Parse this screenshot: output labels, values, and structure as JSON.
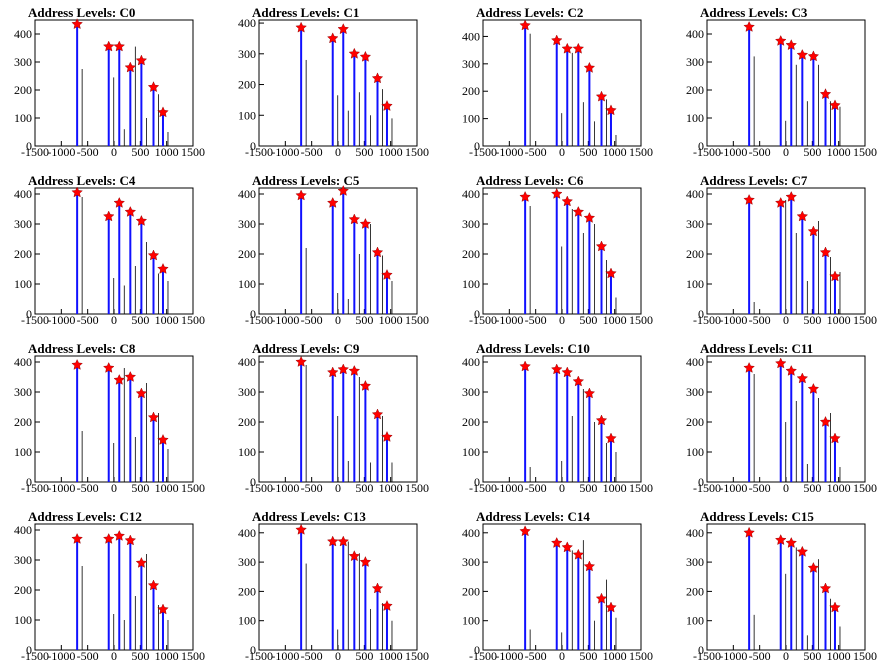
{
  "chart_data": [
    {
      "type": "bar",
      "title": "Address Levels: C0",
      "xlim": [
        -1500,
        1500
      ],
      "ylim": [
        0,
        450
      ],
      "xticks": [
        -1500,
        -1000,
        -500,
        0,
        500,
        1000,
        1500
      ],
      "yticks": [
        0,
        100,
        200,
        300,
        400
      ],
      "peaks": [
        [
          -700,
          435
        ],
        [
          -100,
          355
        ],
        [
          100,
          355
        ],
        [
          310,
          280
        ],
        [
          520,
          305
        ],
        [
          750,
          210
        ],
        [
          930,
          120
        ]
      ],
      "spikes": [
        [
          -700,
          275
        ],
        [
          -100,
          245
        ],
        [
          100,
          60
        ],
        [
          310,
          355
        ],
        [
          520,
          100
        ],
        [
          750,
          185
        ],
        [
          930,
          50
        ]
      ]
    },
    {
      "type": "bar",
      "title": "Address Levels: C1",
      "xlim": [
        -1500,
        1500
      ],
      "ylim": [
        0,
        410
      ],
      "xticks": [
        -1500,
        -1000,
        -500,
        0,
        500,
        1000,
        1500
      ],
      "yticks": [
        0,
        100,
        200,
        300,
        400
      ],
      "peaks": [
        [
          -700,
          385
        ],
        [
          -100,
          350
        ],
        [
          100,
          380
        ],
        [
          310,
          300
        ],
        [
          520,
          290
        ],
        [
          750,
          220
        ],
        [
          930,
          130
        ]
      ],
      "spikes": [
        [
          -700,
          280
        ],
        [
          -100,
          165
        ],
        [
          100,
          115
        ],
        [
          310,
          175
        ],
        [
          520,
          100
        ],
        [
          750,
          185
        ],
        [
          930,
          90
        ]
      ]
    },
    {
      "type": "bar",
      "title": "Address Levels: C2",
      "xlim": [
        -1500,
        1500
      ],
      "ylim": [
        0,
        460
      ],
      "xticks": [
        -1500,
        -1000,
        -500,
        0,
        500,
        1000,
        1500
      ],
      "yticks": [
        0,
        100,
        200,
        300,
        400
      ],
      "peaks": [
        [
          -700,
          440
        ],
        [
          -100,
          385
        ],
        [
          100,
          355
        ],
        [
          310,
          355
        ],
        [
          520,
          285
        ],
        [
          750,
          180
        ],
        [
          930,
          130
        ]
      ],
      "spikes": [
        [
          -700,
          410
        ],
        [
          -100,
          120
        ],
        [
          100,
          340
        ],
        [
          310,
          160
        ],
        [
          520,
          90
        ],
        [
          750,
          170
        ],
        [
          930,
          40
        ]
      ]
    },
    {
      "type": "bar",
      "title": "Address Levels: C3",
      "xlim": [
        -1500,
        1500
      ],
      "ylim": [
        0,
        450
      ],
      "xticks": [
        -1500,
        -1000,
        -500,
        0,
        500,
        1000,
        1500
      ],
      "yticks": [
        0,
        100,
        200,
        300,
        400
      ],
      "peaks": [
        [
          -700,
          425
        ],
        [
          -100,
          375
        ],
        [
          100,
          360
        ],
        [
          310,
          325
        ],
        [
          520,
          320
        ],
        [
          750,
          185
        ],
        [
          930,
          145
        ]
      ],
      "spikes": [
        [
          -700,
          320
        ],
        [
          -100,
          90
        ],
        [
          100,
          290
        ],
        [
          310,
          160
        ],
        [
          520,
          290
        ],
        [
          750,
          160
        ],
        [
          930,
          140
        ]
      ]
    },
    {
      "type": "bar",
      "title": "Address Levels: C4",
      "xlim": [
        -1500,
        1500
      ],
      "ylim": [
        0,
        420
      ],
      "xticks": [
        -1500,
        -1000,
        -500,
        0,
        500,
        1000,
        1500
      ],
      "yticks": [
        0,
        100,
        200,
        300,
        400
      ],
      "peaks": [
        [
          -700,
          405
        ],
        [
          -100,
          325
        ],
        [
          100,
          370
        ],
        [
          310,
          340
        ],
        [
          520,
          310
        ],
        [
          750,
          195
        ],
        [
          930,
          150
        ]
      ],
      "spikes": [
        [
          -700,
          390
        ],
        [
          -100,
          120
        ],
        [
          100,
          95
        ],
        [
          310,
          160
        ],
        [
          520,
          240
        ],
        [
          750,
          135
        ],
        [
          930,
          110
        ]
      ]
    },
    {
      "type": "bar",
      "title": "Address Levels: C5",
      "xlim": [
        -1500,
        1500
      ],
      "ylim": [
        0,
        420
      ],
      "xticks": [
        -1500,
        -1000,
        -500,
        0,
        500,
        1000,
        1500
      ],
      "yticks": [
        0,
        100,
        200,
        300,
        400
      ],
      "peaks": [
        [
          -700,
          395
        ],
        [
          -100,
          370
        ],
        [
          100,
          410
        ],
        [
          310,
          315
        ],
        [
          520,
          300
        ],
        [
          750,
          205
        ],
        [
          930,
          130
        ]
      ],
      "spikes": [
        [
          -700,
          220
        ],
        [
          -100,
          70
        ],
        [
          100,
          50
        ],
        [
          310,
          200
        ],
        [
          520,
          300
        ],
        [
          750,
          195
        ],
        [
          930,
          110
        ]
      ]
    },
    {
      "type": "bar",
      "title": "Address Levels: C6",
      "xlim": [
        -1500,
        1500
      ],
      "ylim": [
        0,
        420
      ],
      "xticks": [
        -1500,
        -1000,
        -500,
        0,
        500,
        1000,
        1500
      ],
      "yticks": [
        0,
        100,
        200,
        300,
        400
      ],
      "peaks": [
        [
          -700,
          390
        ],
        [
          -100,
          400
        ],
        [
          100,
          375
        ],
        [
          310,
          340
        ],
        [
          520,
          320
        ],
        [
          750,
          225
        ],
        [
          930,
          135
        ]
      ],
      "spikes": [
        [
          -700,
          360
        ],
        [
          -100,
          225
        ],
        [
          100,
          350
        ],
        [
          310,
          270
        ],
        [
          520,
          300
        ],
        [
          750,
          180
        ],
        [
          930,
          55
        ]
      ]
    },
    {
      "type": "bar",
      "title": "Address Levels: C7",
      "xlim": [
        -1500,
        1500
      ],
      "ylim": [
        0,
        420
      ],
      "xticks": [
        -1500,
        -1000,
        -500,
        0,
        500,
        1000,
        1500
      ],
      "yticks": [
        0,
        100,
        200,
        300,
        400
      ],
      "peaks": [
        [
          -700,
          380
        ],
        [
          -100,
          370
        ],
        [
          100,
          390
        ],
        [
          310,
          325
        ],
        [
          520,
          275
        ],
        [
          750,
          205
        ],
        [
          930,
          125
        ]
      ],
      "spikes": [
        [
          -700,
          40
        ],
        [
          -100,
          380
        ],
        [
          100,
          270
        ],
        [
          310,
          110
        ],
        [
          520,
          310
        ],
        [
          750,
          190
        ],
        [
          930,
          140
        ]
      ]
    },
    {
      "type": "bar",
      "title": "Address Levels: C8",
      "xlim": [
        -1500,
        1500
      ],
      "ylim": [
        0,
        420
      ],
      "xticks": [
        -1500,
        -1000,
        -500,
        0,
        500,
        1000,
        1500
      ],
      "yticks": [
        0,
        100,
        200,
        300,
        400
      ],
      "peaks": [
        [
          -700,
          390
        ],
        [
          -100,
          380
        ],
        [
          100,
          340
        ],
        [
          310,
          350
        ],
        [
          520,
          295
        ],
        [
          750,
          215
        ],
        [
          930,
          140
        ]
      ],
      "spikes": [
        [
          -700,
          170
        ],
        [
          -100,
          130
        ],
        [
          100,
          380
        ],
        [
          310,
          150
        ],
        [
          520,
          330
        ],
        [
          750,
          230
        ],
        [
          930,
          110
        ]
      ]
    },
    {
      "type": "bar",
      "title": "Address Levels: C9",
      "xlim": [
        -1500,
        1500
      ],
      "ylim": [
        0,
        420
      ],
      "xticks": [
        -1500,
        -1000,
        -500,
        0,
        500,
        1000,
        1500
      ],
      "yticks": [
        0,
        100,
        200,
        300,
        400
      ],
      "peaks": [
        [
          -700,
          400
        ],
        [
          -100,
          365
        ],
        [
          100,
          375
        ],
        [
          310,
          370
        ],
        [
          520,
          320
        ],
        [
          750,
          225
        ],
        [
          930,
          150
        ]
      ],
      "spikes": [
        [
          -700,
          390
        ],
        [
          -100,
          220
        ],
        [
          100,
          70
        ],
        [
          310,
          350
        ],
        [
          520,
          65
        ],
        [
          750,
          220
        ],
        [
          930,
          65
        ]
      ]
    },
    {
      "type": "bar",
      "title": "Address Levels: C10",
      "xlim": [
        -1500,
        1500
      ],
      "ylim": [
        0,
        420
      ],
      "xticks": [
        -1500,
        -1000,
        -500,
        0,
        500,
        1000,
        1500
      ],
      "yticks": [
        0,
        100,
        200,
        300,
        400
      ],
      "peaks": [
        [
          -700,
          385
        ],
        [
          -100,
          375
        ],
        [
          100,
          365
        ],
        [
          310,
          335
        ],
        [
          520,
          295
        ],
        [
          750,
          205
        ],
        [
          930,
          145
        ]
      ],
      "spikes": [
        [
          -700,
          50
        ],
        [
          -100,
          70
        ],
        [
          100,
          220
        ],
        [
          310,
          310
        ],
        [
          520,
          200
        ],
        [
          750,
          130
        ],
        [
          930,
          100
        ]
      ]
    },
    {
      "type": "bar",
      "title": "Address Levels: C11",
      "xlim": [
        -1500,
        1500
      ],
      "ylim": [
        0,
        420
      ],
      "xticks": [
        -1500,
        -1000,
        -500,
        0,
        500,
        1000,
        1500
      ],
      "yticks": [
        0,
        100,
        200,
        300,
        400
      ],
      "peaks": [
        [
          -700,
          380
        ],
        [
          -100,
          395
        ],
        [
          100,
          370
        ],
        [
          310,
          345
        ],
        [
          520,
          310
        ],
        [
          750,
          200
        ],
        [
          930,
          145
        ]
      ],
      "spikes": [
        [
          -700,
          360
        ],
        [
          -100,
          200
        ],
        [
          100,
          270
        ],
        [
          310,
          60
        ],
        [
          520,
          280
        ],
        [
          750,
          230
        ],
        [
          930,
          50
        ]
      ]
    },
    {
      "type": "bar",
      "title": "Address Levels: C12",
      "xlim": [
        -1500,
        1500
      ],
      "ylim": [
        0,
        420
      ],
      "xticks": [
        -1500,
        -1000,
        -500,
        0,
        500,
        1000,
        1500
      ],
      "yticks": [
        0,
        100,
        200,
        300,
        400
      ],
      "peaks": [
        [
          -700,
          370
        ],
        [
          -100,
          370
        ],
        [
          100,
          380
        ],
        [
          310,
          365
        ],
        [
          520,
          290
        ],
        [
          750,
          215
        ],
        [
          930,
          135
        ]
      ],
      "spikes": [
        [
          -700,
          280
        ],
        [
          -100,
          120
        ],
        [
          100,
          100
        ],
        [
          310,
          180
        ],
        [
          520,
          320
        ],
        [
          750,
          150
        ],
        [
          930,
          100
        ]
      ]
    },
    {
      "type": "bar",
      "title": "Address Levels: C13",
      "xlim": [
        -1500,
        1500
      ],
      "ylim": [
        0,
        430
      ],
      "xticks": [
        -1500,
        -1000,
        -500,
        0,
        500,
        1000,
        1500
      ],
      "yticks": [
        0,
        100,
        200,
        300,
        400
      ],
      "peaks": [
        [
          -700,
          410
        ],
        [
          -100,
          370
        ],
        [
          100,
          370
        ],
        [
          310,
          320
        ],
        [
          520,
          300
        ],
        [
          750,
          210
        ],
        [
          930,
          150
        ]
      ],
      "spikes": [
        [
          -700,
          295
        ],
        [
          -100,
          70
        ],
        [
          100,
          370
        ],
        [
          310,
          330
        ],
        [
          520,
          140
        ],
        [
          750,
          160
        ],
        [
          930,
          100
        ]
      ]
    },
    {
      "type": "bar",
      "title": "Address Levels: C14",
      "xlim": [
        -1500,
        1500
      ],
      "ylim": [
        0,
        430
      ],
      "xticks": [
        -1500,
        -1000,
        -500,
        0,
        500,
        1000,
        1500
      ],
      "yticks": [
        0,
        100,
        200,
        300,
        400
      ],
      "peaks": [
        [
          -700,
          405
        ],
        [
          -100,
          365
        ],
        [
          100,
          350
        ],
        [
          310,
          325
        ],
        [
          520,
          285
        ],
        [
          750,
          175
        ],
        [
          930,
          145
        ]
      ],
      "spikes": [
        [
          -700,
          70
        ],
        [
          -100,
          60
        ],
        [
          100,
          340
        ],
        [
          310,
          375
        ],
        [
          520,
          100
        ],
        [
          750,
          240
        ],
        [
          930,
          110
        ]
      ]
    },
    {
      "type": "bar",
      "title": "Address Levels: C15",
      "xlim": [
        -1500,
        1500
      ],
      "ylim": [
        0,
        430
      ],
      "xticks": [
        -1500,
        -1000,
        -500,
        0,
        500,
        1000,
        1500
      ],
      "yticks": [
        0,
        100,
        200,
        300,
        400
      ],
      "peaks": [
        [
          -700,
          400
        ],
        [
          -100,
          375
        ],
        [
          100,
          365
        ],
        [
          310,
          335
        ],
        [
          520,
          280
        ],
        [
          750,
          210
        ],
        [
          930,
          145
        ]
      ],
      "spikes": [
        [
          -700,
          120
        ],
        [
          -100,
          260
        ],
        [
          100,
          350
        ],
        [
          310,
          50
        ],
        [
          520,
          310
        ],
        [
          750,
          175
        ],
        [
          930,
          80
        ]
      ]
    }
  ],
  "colors": {
    "bars": "#1010ff",
    "thin_spikes": "#000000",
    "markers": "#ff0000",
    "frame": "#000000"
  }
}
